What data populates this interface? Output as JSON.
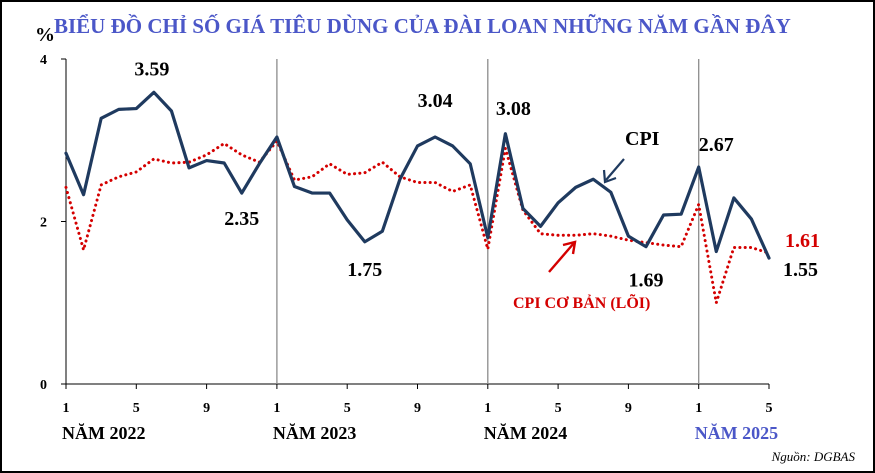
{
  "chart_data": {
    "type": "line",
    "title": "BIỂU ĐỒ CHỈ SỐ GIÁ TIÊU DÙNG CỦA ĐÀI LOAN NHỮNG NĂM GẦN ĐÂY",
    "ylabel": "%",
    "ylim": [
      0,
      4
    ],
    "y_ticks": [
      "0",
      "2",
      "4"
    ],
    "x_ticks": [
      {
        "index": 0,
        "label": "1"
      },
      {
        "index": 4,
        "label": "5"
      },
      {
        "index": 8,
        "label": "9"
      },
      {
        "index": 12,
        "label": "1"
      },
      {
        "index": 16,
        "label": "5"
      },
      {
        "index": 20,
        "label": "9"
      },
      {
        "index": 24,
        "label": "1"
      },
      {
        "index": 28,
        "label": "5"
      },
      {
        "index": 32,
        "label": "9"
      },
      {
        "index": 36,
        "label": "1"
      },
      {
        "index": 40,
        "label": "5"
      }
    ],
    "years": [
      {
        "label": "NĂM 2022",
        "index": 0,
        "color": "#000000"
      },
      {
        "label": "NĂM 2023",
        "index": 12,
        "color": "#000000"
      },
      {
        "label": "NĂM 2024",
        "index": 24,
        "color": "#000000"
      },
      {
        "label": "NĂM 2025",
        "index": 36,
        "color": "#4b57c8"
      }
    ],
    "series": [
      {
        "name": "CPI",
        "color": "#1f3a5f",
        "style": "solid",
        "values": [
          2.84,
          2.33,
          3.27,
          3.38,
          3.39,
          3.59,
          3.36,
          2.66,
          2.75,
          2.72,
          2.35,
          2.71,
          3.04,
          2.43,
          2.35,
          2.35,
          2.02,
          1.75,
          1.88,
          2.52,
          2.93,
          3.04,
          2.93,
          2.71,
          1.8,
          3.08,
          2.16,
          1.94,
          2.23,
          2.42,
          2.52,
          2.36,
          1.82,
          1.69,
          2.08,
          2.09,
          2.67,
          1.63,
          2.29,
          2.03,
          1.55
        ]
      },
      {
        "name": "CPI CƠ BẢN (LÕI)",
        "color": "#d40000",
        "style": "dotted",
        "values": [
          2.42,
          1.65,
          2.45,
          2.55,
          2.61,
          2.77,
          2.72,
          2.73,
          2.82,
          2.96,
          2.82,
          2.73,
          2.99,
          2.51,
          2.55,
          2.71,
          2.58,
          2.6,
          2.73,
          2.55,
          2.48,
          2.48,
          2.37,
          2.45,
          1.66,
          2.9,
          2.14,
          1.85,
          1.83,
          1.83,
          1.85,
          1.82,
          1.77,
          1.74,
          1.71,
          1.69,
          2.21,
          1.0,
          1.68,
          1.68,
          1.61
        ]
      }
    ],
    "annotations": [
      {
        "text": "3.59",
        "series": 0,
        "index": 5,
        "color": "#000000"
      },
      {
        "text": "2.35",
        "series": 0,
        "index": 10,
        "color": "#000000"
      },
      {
        "text": "1.75",
        "series": 0,
        "index": 17,
        "color": "#000000"
      },
      {
        "text": "3.04",
        "series": 0,
        "index": 21,
        "color": "#000000"
      },
      {
        "text": "3.08",
        "series": 0,
        "index": 25,
        "color": "#000000"
      },
      {
        "text": "1.69",
        "series": 0,
        "index": 33,
        "color": "#000000"
      },
      {
        "text": "2.67",
        "series": 0,
        "index": 36,
        "color": "#000000"
      },
      {
        "text": "1.55",
        "series": 0,
        "index": 40,
        "color": "#000000"
      },
      {
        "text": "1.61",
        "series": 1,
        "index": 40,
        "color": "#d40000"
      }
    ],
    "series_labels": [
      {
        "text": "CPI",
        "color": "#000000",
        "arrow_color": "#1f3a5f"
      },
      {
        "text": "CPI CƠ BẢN (LÕI)",
        "color": "#d40000",
        "arrow_color": "#d40000"
      }
    ],
    "source": "Nguồn: DGBAS",
    "grid": false
  }
}
